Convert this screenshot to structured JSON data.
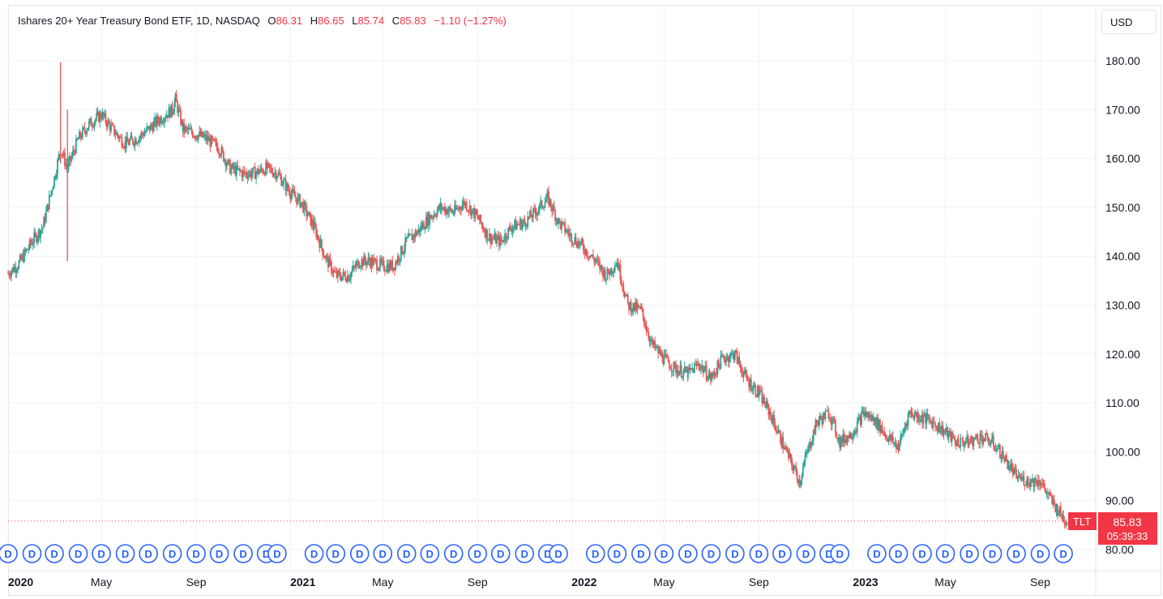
{
  "legend": {
    "title": "Ishares 20+ Year Treasury Bond ETF, 1D, NASDAQ",
    "open_label": "O",
    "open": "86.31",
    "high_label": "H",
    "high": "86.65",
    "low_label": "L",
    "low": "85.74",
    "close_label": "C",
    "close": "85.83",
    "change": "−1.10 (−1.27%)"
  },
  "currency": "USD",
  "price_tag": {
    "symbol": "TLT",
    "price": "85.83",
    "countdown": "05:39:33"
  },
  "dividend_marker": "D",
  "colors": {
    "up": "#26a69a",
    "down": "#ef5350",
    "grid": "#f0f3fa",
    "marker": "#2962ff",
    "tag": "#f23645"
  },
  "chart_data": {
    "type": "candlestick",
    "title": "Ishares 20+ Year Treasury Bond ETF, 1D, NASDAQ",
    "xlabel": "",
    "ylabel": "",
    "currency": "USD",
    "ylim": [
      77,
      182
    ],
    "y_ticks": [
      "80.00",
      "90.00",
      "100.00",
      "110.00",
      "120.00",
      "130.00",
      "140.00",
      "150.00",
      "160.00",
      "170.00",
      "180.00"
    ],
    "x_ticks": [
      {
        "label": "2020",
        "bold": true,
        "date": "2020-01-01"
      },
      {
        "label": "May",
        "bold": false,
        "date": "2020-05-01"
      },
      {
        "label": "Sep",
        "bold": false,
        "date": "2020-09-01"
      },
      {
        "label": "2021",
        "bold": true,
        "date": "2021-01-01"
      },
      {
        "label": "May",
        "bold": false,
        "date": "2021-05-01"
      },
      {
        "label": "Sep",
        "bold": false,
        "date": "2021-09-01"
      },
      {
        "label": "2022",
        "bold": true,
        "date": "2022-01-01"
      },
      {
        "label": "May",
        "bold": false,
        "date": "2022-05-01"
      },
      {
        "label": "Sep",
        "bold": false,
        "date": "2022-09-01"
      },
      {
        "label": "2023",
        "bold": true,
        "date": "2023-01-01"
      },
      {
        "label": "May",
        "bold": false,
        "date": "2023-05-01"
      },
      {
        "label": "Sep",
        "bold": false,
        "date": "2023-09-01"
      }
    ],
    "last_price": 85.83,
    "series": [
      {
        "name": "",
        "x": [
          "2020-01-01",
          "2020-01-15",
          "2020-02-01",
          "2020-02-15",
          "2020-03-01",
          "2020-03-09",
          "2020-03-18",
          "2020-04-01",
          "2020-04-15",
          "2020-05-01",
          "2020-05-15",
          "2020-06-01",
          "2020-06-15",
          "2020-07-01",
          "2020-07-15",
          "2020-08-01",
          "2020-08-05",
          "2020-08-15",
          "2020-09-01",
          "2020-09-15",
          "2020-10-01",
          "2020-10-15",
          "2020-11-01",
          "2020-11-15",
          "2020-12-01",
          "2020-12-15",
          "2021-01-01",
          "2021-01-15",
          "2021-02-01",
          "2021-02-15",
          "2021-03-01",
          "2021-03-18",
          "2021-04-01",
          "2021-04-15",
          "2021-05-01",
          "2021-05-15",
          "2021-06-01",
          "2021-06-15",
          "2021-07-01",
          "2021-07-15",
          "2021-08-01",
          "2021-08-15",
          "2021-09-01",
          "2021-09-15",
          "2021-10-01",
          "2021-10-15",
          "2021-11-01",
          "2021-11-15",
          "2021-12-01",
          "2021-12-15",
          "2022-01-01",
          "2022-01-15",
          "2022-02-01",
          "2022-02-15",
          "2022-03-01",
          "2022-03-15",
          "2022-04-01",
          "2022-04-15",
          "2022-05-01",
          "2022-05-15",
          "2022-06-01",
          "2022-06-15",
          "2022-07-01",
          "2022-07-15",
          "2022-08-01",
          "2022-08-15",
          "2022-09-01",
          "2022-09-15",
          "2022-10-01",
          "2022-10-15",
          "2022-10-24",
          "2022-11-01",
          "2022-11-15",
          "2022-12-01",
          "2022-12-15",
          "2023-01-01",
          "2023-01-15",
          "2023-02-01",
          "2023-02-15",
          "2023-03-01",
          "2023-03-15",
          "2023-04-01",
          "2023-04-15",
          "2023-05-01",
          "2023-05-15",
          "2023-06-01",
          "2023-06-15",
          "2023-07-01",
          "2023-07-15",
          "2023-08-01",
          "2023-08-15",
          "2023-09-01",
          "2023-09-15",
          "2023-10-01",
          "2023-10-06"
        ],
        "close": [
          136.5,
          138.5,
          143,
          146,
          156,
          162,
          158,
          164,
          167,
          169,
          166,
          163,
          164,
          166,
          168,
          170,
          172,
          166,
          165,
          164,
          162,
          158,
          157,
          157,
          158,
          157,
          153,
          151,
          146,
          140,
          136,
          136,
          139,
          139,
          138,
          138,
          143,
          145,
          148,
          150,
          149,
          151,
          148,
          144,
          143,
          146,
          147,
          149,
          152,
          147,
          144,
          142,
          139,
          136,
          139,
          130,
          129,
          122,
          119,
          117,
          116,
          118,
          115,
          119,
          120,
          115,
          112,
          108,
          102,
          97,
          94,
          99,
          106,
          108,
          102,
          104,
          108,
          106,
          103,
          101,
          108,
          107,
          106,
          104,
          102,
          102,
          103,
          102,
          99,
          95,
          94,
          94,
          90,
          86.5,
          85.83
        ]
      }
    ],
    "dividend_markers": [
      {
        "date": "2020-01-01",
        "label": "D"
      },
      {
        "date": "2020-02-01",
        "label": "D"
      },
      {
        "date": "2020-03-01",
        "label": "D"
      },
      {
        "date": "2020-04-01",
        "label": "D"
      },
      {
        "date": "2020-05-01",
        "label": "D"
      },
      {
        "date": "2020-06-01",
        "label": "D"
      },
      {
        "date": "2020-07-01",
        "label": "D"
      },
      {
        "date": "2020-08-01",
        "label": "D"
      },
      {
        "date": "2020-09-01",
        "label": "D"
      },
      {
        "date": "2020-10-01",
        "label": "D"
      },
      {
        "date": "2020-11-01",
        "label": "D"
      },
      {
        "date": "2020-12-01",
        "label": "D"
      },
      {
        "date": "2020-12-15",
        "label": "D"
      },
      {
        "date": "2021-02-01",
        "label": "D"
      },
      {
        "date": "2021-03-01",
        "label": "D"
      },
      {
        "date": "2021-04-01",
        "label": "D"
      },
      {
        "date": "2021-05-01",
        "label": "D"
      },
      {
        "date": "2021-06-01",
        "label": "D"
      },
      {
        "date": "2021-07-01",
        "label": "D"
      },
      {
        "date": "2021-08-01",
        "label": "D"
      },
      {
        "date": "2021-09-01",
        "label": "D"
      },
      {
        "date": "2021-10-01",
        "label": "D"
      },
      {
        "date": "2021-11-01",
        "label": "D"
      },
      {
        "date": "2021-12-01",
        "label": "D"
      },
      {
        "date": "2021-12-15",
        "label": "D"
      },
      {
        "date": "2022-02-01",
        "label": "D"
      },
      {
        "date": "2022-03-01",
        "label": "D"
      },
      {
        "date": "2022-04-01",
        "label": "D"
      },
      {
        "date": "2022-05-01",
        "label": "D"
      },
      {
        "date": "2022-06-01",
        "label": "D"
      },
      {
        "date": "2022-07-01",
        "label": "D"
      },
      {
        "date": "2022-08-01",
        "label": "D"
      },
      {
        "date": "2022-09-01",
        "label": "D"
      },
      {
        "date": "2022-10-01",
        "label": "D"
      },
      {
        "date": "2022-11-01",
        "label": "D"
      },
      {
        "date": "2022-12-01",
        "label": "D"
      },
      {
        "date": "2022-12-15",
        "label": "D"
      },
      {
        "date": "2023-02-01",
        "label": "D"
      },
      {
        "date": "2023-03-01",
        "label": "D"
      },
      {
        "date": "2023-04-01",
        "label": "D"
      },
      {
        "date": "2023-05-01",
        "label": "D"
      },
      {
        "date": "2023-06-01",
        "label": "D"
      },
      {
        "date": "2023-07-01",
        "label": "D"
      },
      {
        "date": "2023-08-01",
        "label": "D"
      },
      {
        "date": "2023-09-01",
        "label": "D"
      },
      {
        "date": "2023-10-01",
        "label": "D"
      }
    ]
  }
}
